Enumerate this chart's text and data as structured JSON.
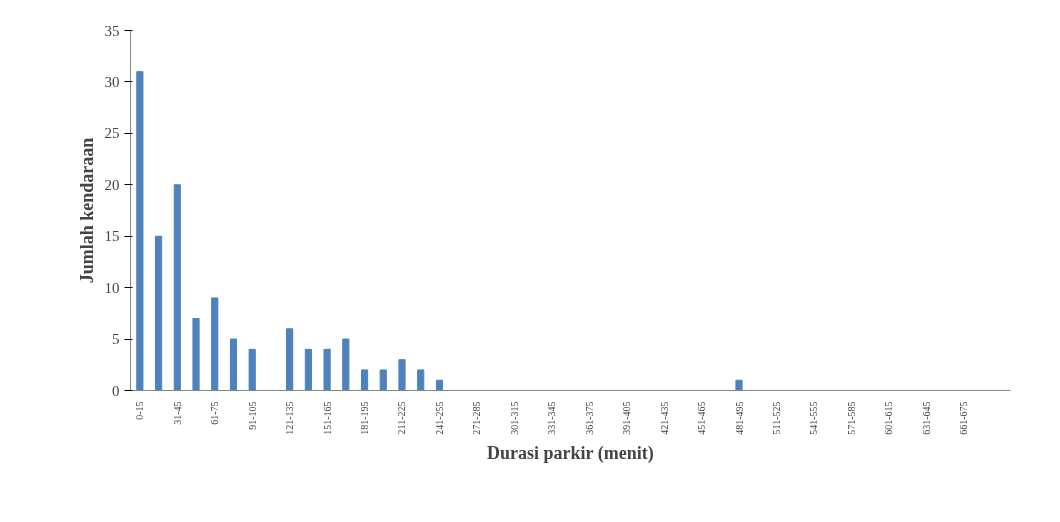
{
  "chart_data": {
    "type": "bar",
    "xlabel": "Durasi parkir (menit)",
    "ylabel": "Jumlah kendaraan",
    "categories": [
      "0-15",
      null,
      "31-45",
      null,
      "61-75",
      null,
      "91-105",
      null,
      "121-135",
      null,
      "151-165",
      null,
      "181-195",
      null,
      "211-225",
      null,
      "241-255",
      null,
      "271-285",
      null,
      "301-315",
      null,
      "331-345",
      null,
      "361-375",
      null,
      "391-405",
      null,
      "421-435",
      null,
      "451-465",
      null,
      "481-495",
      null,
      "511-525",
      null,
      "541-555",
      null,
      "571-585",
      null,
      "601-615",
      null,
      "631-645",
      null,
      "661-675",
      null,
      null
    ],
    "values": [
      31,
      15,
      20,
      7,
      9,
      5,
      4,
      0,
      6,
      4,
      4,
      5,
      2,
      2,
      3,
      2,
      1,
      0,
      0,
      0,
      0,
      0,
      0,
      0,
      0,
      0,
      0,
      0,
      0,
      0,
      0,
      0,
      1,
      0,
      0,
      0,
      0,
      0,
      0,
      0,
      0,
      0,
      0,
      0,
      0,
      0,
      0
    ],
    "color": "#4f81bd",
    "ylim": [
      0,
      35
    ],
    "yticks": [
      0,
      5,
      10,
      15,
      20,
      25,
      30,
      35
    ],
    "grid": false
  }
}
